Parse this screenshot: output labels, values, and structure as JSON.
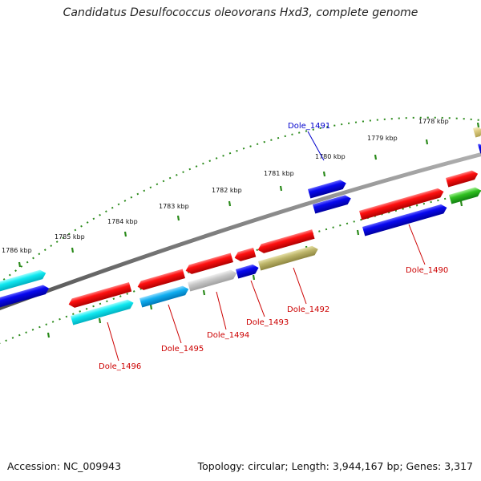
{
  "title": "Candidatus Desulfococcus oleovorans Hxd3, complete genome",
  "footer": {
    "accession": "Accession: NC_009943",
    "summary": "Topology: circular; Length: 3,944,167 bp; Genes: 3,317"
  },
  "colors": {
    "backbone": "#808080",
    "tick_dots": "#2a8a1a",
    "label_red": "#cc0000",
    "label_blue": "#0000cc"
  },
  "scale_ticks": [
    "1778 kbp",
    "1779 kbp",
    "1780 kbp",
    "1781 kbp",
    "1782 kbp",
    "1783 kbp",
    "1784 kbp",
    "1785 kbp",
    "1786 kbp"
  ],
  "gene_labels": [
    {
      "name": "Dole_1491",
      "color": "#0000cc"
    },
    {
      "name": "Dole_1490",
      "color": "#cc0000"
    },
    {
      "name": "Dole_1492",
      "color": "#cc0000"
    },
    {
      "name": "Dole_1493",
      "color": "#cc0000"
    },
    {
      "name": "Dole_1494",
      "color": "#cc0000"
    },
    {
      "name": "Dole_1495",
      "color": "#cc0000"
    },
    {
      "name": "Dole_1496",
      "color": "#cc0000"
    }
  ]
}
